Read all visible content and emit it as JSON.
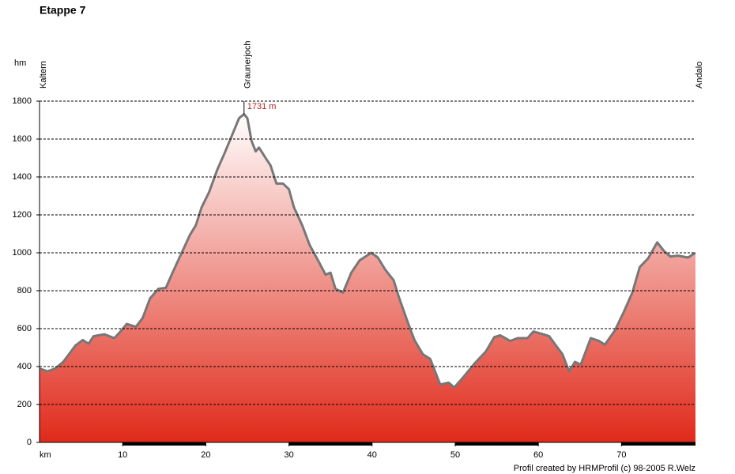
{
  "chart_data": {
    "type": "area",
    "title": "Etappe 7",
    "y_label": "hm",
    "x_label": "km",
    "footer": "Profil created by HRMProfil (c) 98-2005 R.Welz",
    "xlim": [
      0,
      78.9
    ],
    "ylim": [
      0,
      1800
    ],
    "xticks": [
      10,
      20,
      30,
      40,
      50,
      60,
      70
    ],
    "yticks": [
      0,
      200,
      400,
      600,
      800,
      1000,
      1200,
      1400,
      1600,
      1800
    ],
    "grid": true,
    "color": "#e02a1a",
    "line_color": "#777777",
    "waypoints": [
      {
        "name": "Kaltern",
        "x": 0
      },
      {
        "name": "Graunerjoch",
        "x": 24.6
      },
      {
        "name": "Andalo",
        "x": 78.9
      }
    ],
    "annotations": [
      {
        "text": "1731 m",
        "x": 24.6,
        "y": 1731
      }
    ],
    "x": [
      0,
      0.95,
      1.9,
      2.85,
      3.8,
      4.3,
      5.2,
      5.9,
      6.5,
      7.1,
      7.8,
      9.0,
      9.7,
      10.5,
      11.2,
      11.6,
      12.4,
      13.3,
      14.3,
      15.2,
      16.0,
      17.1,
      18.1,
      18.8,
      19.5,
      20.4,
      21.4,
      22.3,
      23.3,
      24.0,
      24.6,
      25.0,
      25.5,
      26.0,
      26.4,
      27.2,
      27.8,
      28.5,
      29.3,
      30.0,
      30.6,
      31.6,
      32.5,
      33.5,
      34.4,
      35.0,
      35.6,
      36.5,
      37.5,
      38.5,
      39.9,
      40.7,
      41.6,
      42.6,
      43.2,
      44.2,
      45.1,
      46.1,
      47.0,
      48.2,
      49.2,
      49.9,
      50.9,
      52.3,
      53.7,
      54.7,
      55.4,
      56.6,
      57.5,
      58.7,
      59.4,
      60.6,
      61.3,
      62.3,
      62.9,
      63.7,
      64.4,
      65.1,
      66.3,
      67.3,
      68.0,
      69.2,
      70.3,
      71.3,
      72.2,
      73.2,
      74.3,
      75.1,
      75.9,
      76.8,
      78.0,
      78.9
    ],
    "values": [
      390,
      375,
      390,
      425,
      480,
      510,
      540,
      520,
      560,
      565,
      570,
      550,
      583,
      625,
      615,
      610,
      655,
      760,
      810,
      815,
      895,
      1000,
      1095,
      1145,
      1240,
      1320,
      1440,
      1530,
      1635,
      1710,
      1731,
      1710,
      1590,
      1535,
      1555,
      1500,
      1460,
      1365,
      1365,
      1335,
      1240,
      1145,
      1040,
      960,
      885,
      895,
      810,
      790,
      895,
      960,
      1000,
      975,
      910,
      855,
      770,
      645,
      540,
      465,
      440,
      305,
      315,
      290,
      340,
      415,
      480,
      555,
      565,
      535,
      550,
      550,
      585,
      570,
      560,
      500,
      465,
      375,
      425,
      410,
      550,
      535,
      515,
      590,
      690,
      790,
      925,
      970,
      1055,
      1010,
      980,
      985,
      975,
      1000
    ]
  }
}
